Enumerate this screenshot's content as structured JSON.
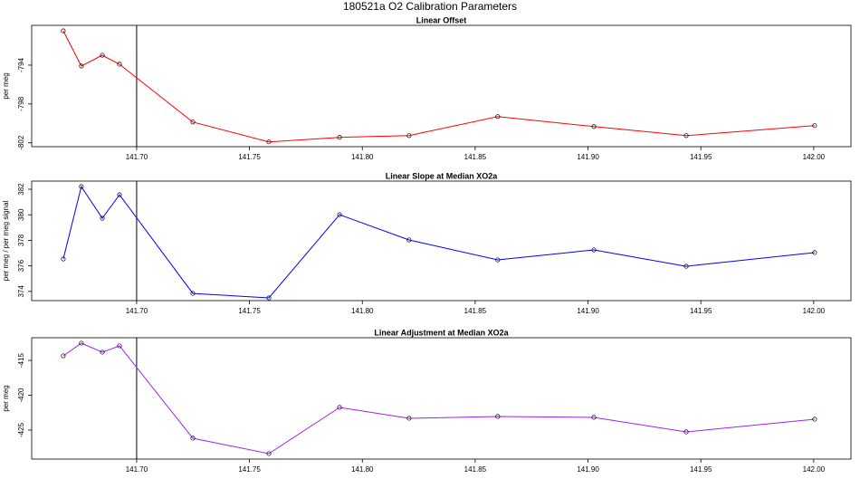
{
  "title": "180521a   O2 Calibration Parameters",
  "chart_data": [
    {
      "type": "line",
      "title": "Linear Offset",
      "y_label": "per meg",
      "color": "#ff0000",
      "x": [
        141.6675,
        141.6755,
        141.6848,
        141.6924,
        141.7249,
        141.7586,
        141.7899,
        141.8207,
        141.86,
        141.9026,
        141.9435,
        142.0004
      ],
      "values": [
        -790.47,
        -794.09,
        -792.98,
        -793.91,
        -799.86,
        -801.91,
        -801.44,
        -801.26,
        -799.3,
        -800.33,
        -801.26,
        -800.23
      ],
      "xlim": [
        141.6535,
        142.0165
      ],
      "ylim": [
        -802.4,
        -789.9
      ],
      "xticks": [
        {
          "value": 141.7,
          "label": "141.70"
        },
        141.75,
        {
          "value": 141.8,
          "label": "141.80"
        },
        141.85,
        {
          "value": 141.9,
          "label": "141.90"
        },
        141.95,
        {
          "value": 142,
          "label": "142.00"
        }
      ],
      "yticks": [
        -794,
        -798,
        -802
      ],
      "vline": 141.7
    },
    {
      "type": "line",
      "title": "Linear Slope at Median XO2a",
      "y_label": "per meg / per meg signal",
      "color": "#0000ff",
      "x": [
        141.6675,
        141.6755,
        141.6848,
        141.6924,
        141.7249,
        141.7586,
        141.7899,
        141.8207,
        141.86,
        141.9026,
        141.9435,
        142.0004
      ],
      "values": [
        376.54,
        382.21,
        379.73,
        381.57,
        373.84,
        373.49,
        380.01,
        378.03,
        376.47,
        377.25,
        375.97,
        377.04
      ],
      "xlim": [
        141.6535,
        142.0165
      ],
      "ylim": [
        373.28,
        382.64
      ],
      "xticks": [
        {
          "value": 141.7,
          "label": "141.70"
        },
        141.75,
        {
          "value": 141.8,
          "label": "141.80"
        },
        141.85,
        {
          "value": 141.9,
          "label": "141.90"
        },
        141.95,
        {
          "value": 142,
          "label": "142.00"
        }
      ],
      "yticks": [
        374,
        376,
        378,
        380,
        382
      ],
      "vline": 141.7
    },
    {
      "type": "line",
      "title": "Linear Adjustment at Median XO2a",
      "y_label": "per meg",
      "color": "#a020f0",
      "x": [
        141.6675,
        141.6755,
        141.6848,
        141.6924,
        141.7249,
        141.7586,
        141.7899,
        141.8207,
        141.86,
        141.9026,
        141.9435,
        142.0004
      ],
      "values": [
        -414.35,
        -412.53,
        -413.83,
        -412.92,
        -426.17,
        -428.38,
        -421.75,
        -423.31,
        -423.05,
        -423.18,
        -425.26,
        -423.44
      ],
      "xlim": [
        141.6535,
        142.0165
      ],
      "ylim": [
        -429.16,
        -411.75
      ],
      "xticks": [
        {
          "value": 141.7,
          "label": "141.70"
        },
        141.75,
        {
          "value": 141.8,
          "label": "141.80"
        },
        141.85,
        {
          "value": 141.9,
          "label": "141.90"
        },
        141.95,
        {
          "value": 142,
          "label": "142.00"
        }
      ],
      "yticks": [
        -415,
        -420,
        -425
      ],
      "vline": 141.7
    }
  ]
}
